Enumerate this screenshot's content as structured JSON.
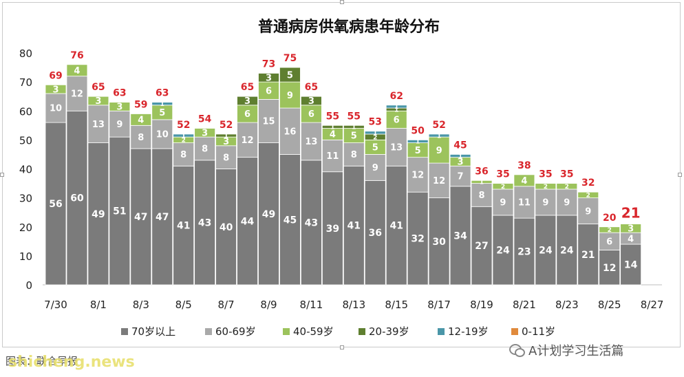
{
  "chart_data": {
    "type": "bar",
    "stacked": true,
    "title": "普通病房供氧病患年龄分布",
    "categories": [
      "7/30",
      "7/31",
      "8/1",
      "8/2",
      "8/3",
      "8/4",
      "8/5",
      "8/6",
      "8/7",
      "8/8",
      "8/9",
      "8/10",
      "8/11",
      "8/12",
      "8/13",
      "8/14",
      "8/15",
      "8/16",
      "8/17",
      "8/18",
      "8/19",
      "8/20",
      "8/21",
      "8/22",
      "8/23",
      "8/24",
      "8/25",
      "8/26"
    ],
    "x_tick_labels": [
      "7/30",
      "8/1",
      "8/3",
      "8/5",
      "8/7",
      "8/9",
      "8/11",
      "8/13",
      "8/15",
      "8/17",
      "8/19",
      "8/21",
      "8/23",
      "8/25",
      "8/27"
    ],
    "ylim": [
      0,
      80
    ],
    "yticks": [
      0,
      10,
      20,
      30,
      40,
      50,
      60,
      70,
      80
    ],
    "legend_position": "bottom",
    "grid": false,
    "series": [
      {
        "name": "70岁以上",
        "color": "#7b7b7b",
        "values": [
          56,
          60,
          49,
          51,
          47,
          47,
          41,
          43,
          40,
          44,
          49,
          45,
          43,
          39,
          41,
          36,
          41,
          32,
          30,
          34,
          27,
          24,
          23,
          24,
          24,
          21,
          12,
          14
        ]
      },
      {
        "name": "60-69岁",
        "color": "#a9a9a9",
        "values": [
          10,
          12,
          13,
          9,
          8,
          10,
          8,
          8,
          8,
          12,
          15,
          16,
          13,
          11,
          8,
          9,
          13,
          12,
          12,
          7,
          8,
          9,
          11,
          9,
          9,
          9,
          6,
          4
        ]
      },
      {
        "name": "40-59岁",
        "color": "#9cc35c",
        "values": [
          3,
          4,
          3,
          3,
          4,
          5,
          2,
          3,
          3,
          6,
          6,
          9,
          6,
          4,
          5,
          5,
          6,
          5,
          9,
          3,
          1,
          2,
          4,
          2,
          2,
          2,
          2,
          3
        ]
      },
      {
        "name": "20-39岁",
        "color": "#5f7f30",
        "values": [
          0,
          0,
          0,
          0,
          0,
          0,
          0,
          0,
          1,
          3,
          3,
          5,
          3,
          1,
          1,
          2,
          1,
          0,
          0,
          0,
          0,
          0,
          0,
          0,
          0,
          0,
          0,
          0
        ]
      },
      {
        "name": "12-19岁",
        "color": "#4a96a8",
        "values": [
          0,
          0,
          0,
          0,
          0,
          1,
          1,
          0,
          0,
          0,
          0,
          0,
          0,
          0,
          0,
          1,
          1,
          1,
          1,
          1,
          0,
          0,
          0,
          0,
          0,
          0,
          0,
          0
        ]
      },
      {
        "name": "0-11岁",
        "color": "#e08a3c",
        "values": [
          0,
          0,
          0,
          0,
          0,
          0,
          0,
          0,
          0,
          0,
          0,
          0,
          0,
          0,
          0,
          0,
          0,
          0,
          0,
          0,
          0,
          0,
          0,
          0,
          0,
          0,
          0,
          0
        ]
      }
    ],
    "totals": [
      69,
      76,
      65,
      63,
      59,
      63,
      52,
      54,
      52,
      65,
      73,
      75,
      65,
      55,
      55,
      53,
      62,
      50,
      52,
      45,
      36,
      35,
      38,
      35,
      35,
      32,
      20,
      21
    ],
    "total_label_color": "#d9262c"
  },
  "footer": {
    "account": "A计划学习生活篇",
    "source": "图表：联合早报",
    "watermark": "shicheng.news"
  }
}
